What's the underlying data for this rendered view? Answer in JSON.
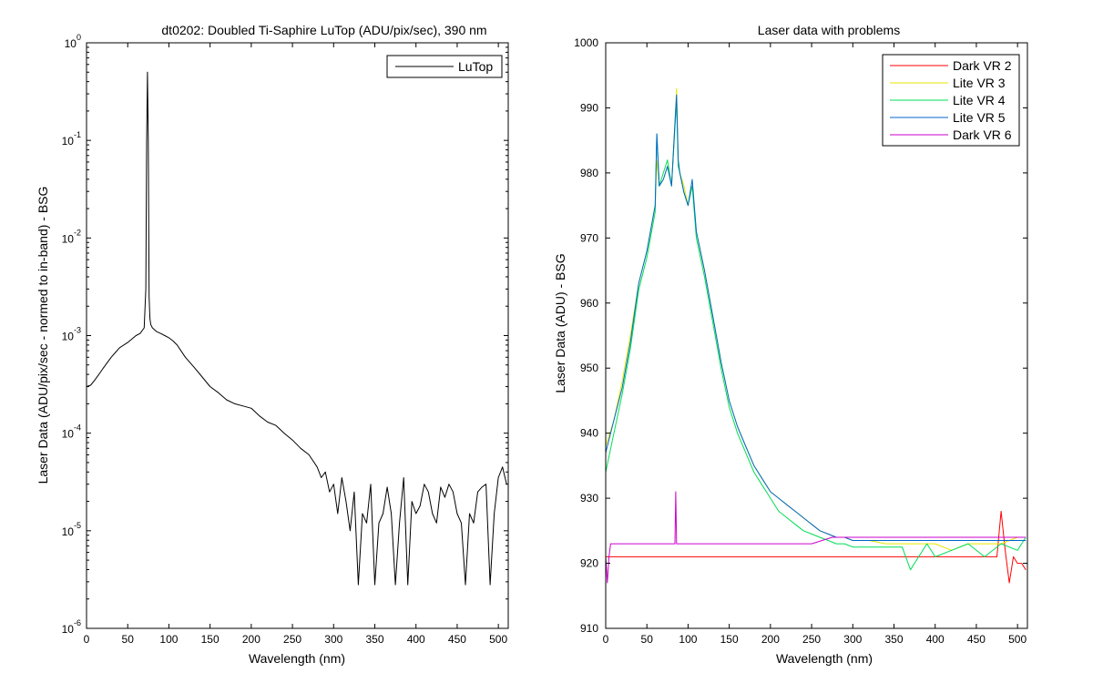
{
  "chart_data": [
    {
      "type": "line",
      "title": "dt0202: Doubled Ti-Saphire LuTop (ADU/pix/sec), 390 nm",
      "xlabel": "Wavelength (nm)",
      "ylabel": "Laser Data (ADU/pix/sec - normed to in-band) - BSG",
      "xlim": [
        0,
        512
      ],
      "ylim": [
        1e-06,
        1
      ],
      "yscale": "log",
      "xticks": [
        "0",
        "50",
        "100",
        "150",
        "200",
        "250",
        "300",
        "350",
        "400",
        "450",
        "500"
      ],
      "yticks": [
        {
          "base": "10",
          "exp": "-6"
        },
        {
          "base": "10",
          "exp": "-5"
        },
        {
          "base": "10",
          "exp": "-4"
        },
        {
          "base": "10",
          "exp": "-3"
        },
        {
          "base": "10",
          "exp": "-2"
        },
        {
          "base": "10",
          "exp": "-1"
        },
        {
          "base": "10",
          "exp": "0"
        }
      ],
      "legend_position": "top-right",
      "series": [
        {
          "name": "LuTop",
          "color": "#000000",
          "x": [
            0,
            5,
            10,
            15,
            20,
            30,
            40,
            50,
            60,
            65,
            70,
            72,
            73,
            74,
            75,
            76,
            77,
            78,
            80,
            85,
            90,
            95,
            100,
            105,
            110,
            120,
            130,
            140,
            150,
            160,
            170,
            180,
            190,
            200,
            210,
            220,
            230,
            240,
            250,
            260,
            270,
            280,
            285,
            290,
            295,
            300,
            305,
            310,
            315,
            320,
            325,
            330,
            335,
            340,
            345,
            350,
            355,
            360,
            365,
            370,
            375,
            380,
            385,
            390,
            395,
            400,
            405,
            410,
            415,
            420,
            425,
            430,
            435,
            440,
            445,
            450,
            455,
            460,
            465,
            470,
            475,
            480,
            485,
            490,
            495,
            500,
            505,
            510
          ],
          "y": [
            0.0003,
            0.00031,
            0.00035,
            0.0004,
            0.00046,
            0.0006,
            0.00075,
            0.00085,
            0.001,
            0.00105,
            0.0012,
            0.003,
            0.1,
            0.5,
            0.1,
            0.0025,
            0.0015,
            0.0013,
            0.0012,
            0.0011,
            0.00105,
            0.001,
            0.00095,
            0.00088,
            0.0008,
            0.0006,
            0.00048,
            0.00038,
            0.0003,
            0.00026,
            0.00022,
            0.0002,
            0.00019,
            0.00018,
            0.00015,
            0.00013,
            0.00012,
            0.0001,
            8.5e-05,
            7e-05,
            6e-05,
            4.5e-05,
            3.5e-05,
            4e-05,
            2.5e-05,
            3e-05,
            1.5e-05,
            3.5e-05,
            2e-05,
            1e-05,
            2.5e-05,
            2.8e-06,
            1.5e-05,
            1.2e-05,
            3e-05,
            2.8e-06,
            1.2e-05,
            1.5e-05,
            2.8e-05,
            1.5e-05,
            2.8e-06,
            1.2e-05,
            3.5e-05,
            2.8e-06,
            2e-05,
            1.5e-05,
            1.8e-05,
            3e-05,
            2.5e-05,
            1.5e-05,
            1.2e-05,
            2.8e-05,
            2.2e-05,
            3e-05,
            2.5e-05,
            1.5e-05,
            1.2e-05,
            2.8e-06,
            1.5e-05,
            1.2e-05,
            2.5e-05,
            2.8e-05,
            3e-05,
            2.8e-06,
            1.5e-05,
            3.5e-05,
            4.5e-05,
            3e-05
          ]
        }
      ]
    },
    {
      "type": "line",
      "title": "Laser data with problems",
      "xlabel": "Wavelength (nm)",
      "ylabel": "Laser Data (ADU) - BSG",
      "xlim": [
        0,
        512
      ],
      "ylim": [
        910,
        1000
      ],
      "xticks": [
        "0",
        "50",
        "100",
        "150",
        "200",
        "250",
        "300",
        "350",
        "400",
        "450",
        "500"
      ],
      "yticks": [
        "910",
        "920",
        "930",
        "940",
        "950",
        "960",
        "970",
        "980",
        "990",
        "1000"
      ],
      "legend_position": "top-right",
      "series": [
        {
          "name": "Dark VR 2",
          "color": "#ff0000",
          "x": [
            0,
            25,
            50,
            75,
            100,
            125,
            150,
            175,
            200,
            225,
            250,
            275,
            300,
            325,
            350,
            375,
            400,
            425,
            450,
            475,
            480,
            485,
            490,
            495,
            500,
            505,
            510
          ],
          "y": [
            921,
            921,
            921,
            921,
            921,
            921,
            921,
            921,
            921,
            921,
            921,
            921,
            921,
            921,
            921,
            921,
            921,
            921,
            921,
            921,
            928,
            922,
            917,
            921,
            920,
            920,
            919
          ]
        },
        {
          "name": "Lite VR 3",
          "color": "#e6e600",
          "x": [
            0,
            10,
            20,
            30,
            40,
            50,
            60,
            62,
            65,
            70,
            75,
            80,
            85,
            86,
            88,
            90,
            95,
            100,
            105,
            110,
            120,
            130,
            140,
            150,
            160,
            170,
            180,
            190,
            200,
            210,
            220,
            230,
            240,
            250,
            260,
            270,
            280,
            290,
            300,
            320,
            340,
            360,
            380,
            400,
            420,
            440,
            460,
            480,
            500,
            510
          ],
          "y": [
            938,
            942,
            948,
            955,
            963,
            968,
            975,
            982,
            978,
            979,
            981,
            978,
            990,
            993,
            982,
            980,
            978,
            975,
            978,
            971,
            965,
            958,
            951,
            945,
            941,
            938,
            935,
            933,
            931,
            930,
            929,
            928,
            927,
            926,
            925,
            924.5,
            924,
            924,
            923.5,
            923.5,
            923,
            923,
            923,
            923,
            922,
            923,
            923,
            923,
            924,
            924
          ]
        },
        {
          "name": "Lite VR 4",
          "color": "#00dd55",
          "x": [
            0,
            10,
            20,
            30,
            40,
            50,
            60,
            62,
            65,
            70,
            75,
            80,
            85,
            86,
            88,
            90,
            95,
            100,
            105,
            110,
            120,
            130,
            140,
            150,
            160,
            170,
            180,
            190,
            200,
            210,
            220,
            230,
            240,
            250,
            260,
            270,
            280,
            290,
            300,
            320,
            340,
            360,
            370,
            380,
            390,
            400,
            420,
            440,
            460,
            480,
            500,
            510
          ],
          "y": [
            934,
            940,
            946,
            953,
            962,
            967,
            974,
            986,
            978,
            980,
            982,
            978,
            989,
            991,
            981,
            980,
            977,
            975,
            978,
            970,
            964,
            957,
            950,
            944,
            940,
            937,
            934,
            932,
            930,
            928,
            927,
            926,
            925,
            924.5,
            924,
            923.5,
            923,
            923,
            922.5,
            922.5,
            922.5,
            922.5,
            919,
            921,
            923,
            921,
            922,
            923,
            921,
            923,
            922,
            924
          ]
        },
        {
          "name": "Lite VR 5",
          "color": "#0066cc",
          "x": [
            0,
            10,
            20,
            30,
            40,
            50,
            60,
            62,
            65,
            70,
            75,
            80,
            85,
            86,
            88,
            90,
            95,
            100,
            105,
            110,
            120,
            130,
            140,
            150,
            160,
            170,
            180,
            190,
            200,
            210,
            220,
            230,
            240,
            250,
            260,
            270,
            280,
            290,
            300,
            320,
            340,
            360,
            380,
            400,
            420,
            440,
            460,
            480,
            500,
            510
          ],
          "y": [
            937,
            942,
            947,
            954,
            963,
            968,
            975,
            986,
            978,
            979,
            981,
            978,
            990,
            992,
            982,
            980,
            977,
            975,
            979,
            971,
            965,
            958,
            951,
            945,
            941,
            938,
            935,
            933,
            931,
            930,
            929,
            928,
            927,
            926,
            925,
            924.5,
            924,
            924,
            923.5,
            923.5,
            923.5,
            923.5,
            923.5,
            923.5,
            923.5,
            923.5,
            923.5,
            923.5,
            923.5,
            923.5
          ]
        },
        {
          "name": "Dark VR 6",
          "color": "#cc00cc",
          "x": [
            0,
            2,
            4,
            6,
            10,
            20,
            30,
            40,
            50,
            60,
            70,
            80,
            84,
            85,
            86,
            88,
            95,
            110,
            130,
            150,
            175,
            200,
            225,
            250,
            275,
            300,
            325,
            350,
            375,
            400,
            425,
            450,
            475,
            500,
            510
          ],
          "y": [
            921,
            917,
            921,
            923,
            923,
            923,
            923,
            923,
            923,
            923,
            923,
            923,
            923,
            931,
            923,
            923,
            923,
            923,
            923,
            923,
            923,
            923,
            923,
            923,
            924,
            924,
            924,
            924,
            924,
            924,
            924,
            924,
            924,
            924,
            924
          ]
        }
      ]
    }
  ]
}
